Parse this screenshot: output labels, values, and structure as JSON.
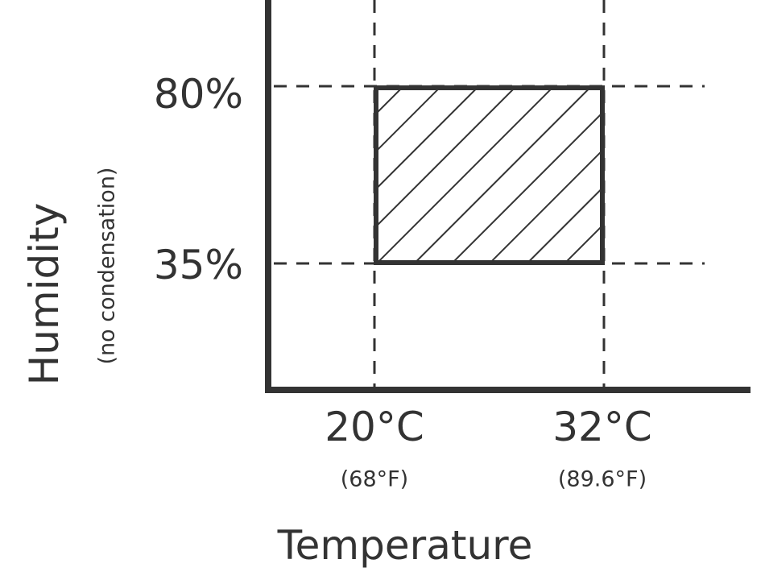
{
  "y_axis": {
    "title": "Humidity",
    "subtitle": "(no condensation)",
    "ticks": [
      "80%",
      "35%"
    ]
  },
  "x_axis": {
    "title": "Temperature",
    "ticks": [
      {
        "label": "20°C",
        "sublabel": "(68°F)"
      },
      {
        "label": "32°C",
        "sublabel": "(89.6°F)"
      }
    ]
  }
}
